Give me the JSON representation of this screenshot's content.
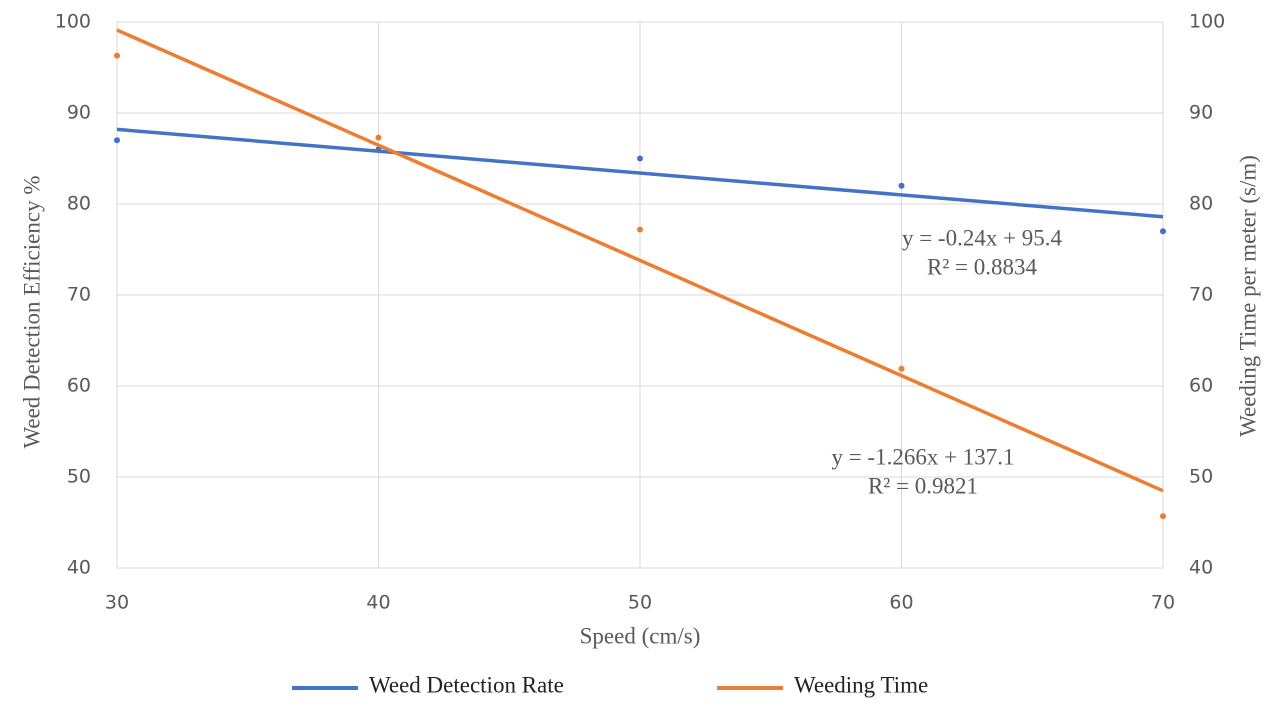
{
  "chart_data": {
    "type": "scatter",
    "x_label": "Speed (cm/s)",
    "y_label": "Weed Detection Efficiency  %",
    "y2_label": "Weeding Time per meter (s/m)",
    "x": [
      30,
      40,
      50,
      60,
      70
    ],
    "series": [
      {
        "name": "Weed Detection Rate",
        "color": "#4472c4",
        "values": [
          87,
          86,
          85,
          82,
          77
        ],
        "trendline": {
          "slope": -0.24,
          "intercept": 95.4,
          "equation": "y = -0.24x + 95.4",
          "r2": "R² = 0.8834"
        }
      },
      {
        "name": "Weeding Time",
        "color": "#ed7d31",
        "axis": "y2",
        "values": [
          96.3,
          87.3,
          77.2,
          61.9,
          45.7
        ],
        "trendline": {
          "slope": -1.266,
          "intercept": 137.1,
          "equation": "y = -1.266x + 137.1",
          "r2": "R² = 0.9821"
        }
      }
    ],
    "xlim": [
      30,
      70
    ],
    "xticks": [
      30,
      40,
      50,
      60,
      70
    ],
    "ylim": [
      40,
      100
    ],
    "yticks": [
      40,
      50,
      60,
      70,
      80,
      90,
      100
    ],
    "y2lim": [
      40,
      100
    ],
    "y2ticks": [
      40,
      50,
      60,
      70,
      80,
      90,
      100
    ],
    "grid": true,
    "legend": "bottom"
  }
}
